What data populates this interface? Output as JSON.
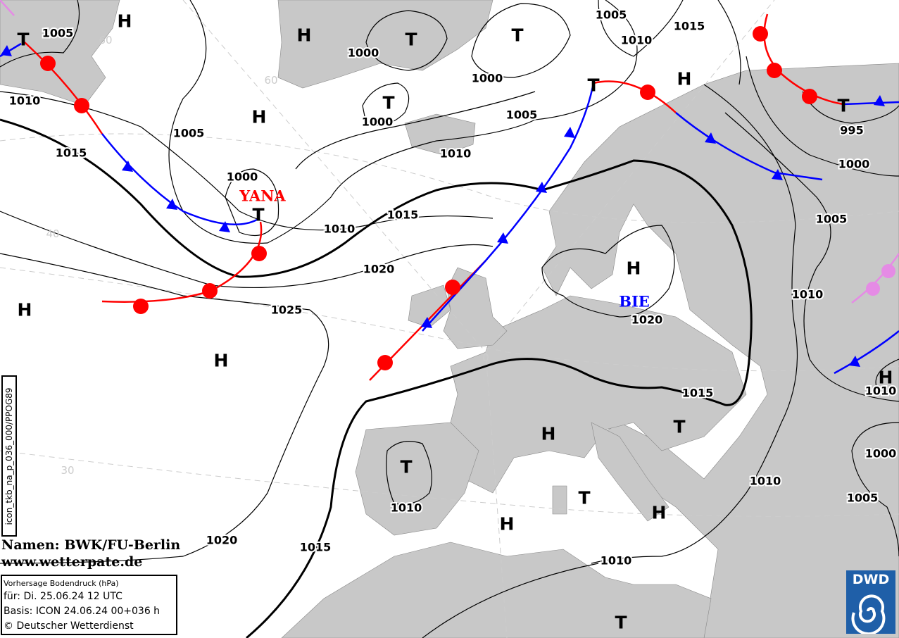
{
  "map": {
    "land_color": "#c8c8c8",
    "sea_color": "#ffffff",
    "isobar_color": "#000000",
    "cold_front_color": "#0000ff",
    "warm_front_color": "#ff0000",
    "occlusion_color": "#e58be5",
    "isobar_labels": [
      "1005",
      "1010",
      "1015",
      "1005",
      "1000",
      "1010",
      "1015",
      "1020",
      "1025",
      "1000",
      "1000",
      "1000",
      "1005",
      "1010",
      "1005",
      "1010",
      "1015",
      "995",
      "1000",
      "1005",
      "1010",
      "1020",
      "1015",
      "1010",
      "1020",
      "1015",
      "1010",
      "1010",
      "1005",
      "1000",
      "1010"
    ],
    "high_label": "H",
    "low_label": "T",
    "pressure_systems": [
      "H",
      "H",
      "H",
      "H",
      "H",
      "H",
      "H",
      "H",
      "H",
      "H",
      "H",
      "T",
      "T",
      "T",
      "T",
      "T",
      "T",
      "T",
      "T",
      "T",
      "T",
      "T"
    ],
    "system_names": [
      {
        "name": "YANA",
        "color": "#ff0000"
      },
      {
        "name": "BIE",
        "color": "#0000ff"
      }
    ],
    "grid_labels": [
      "60",
      "60",
      "40",
      "30",
      "0"
    ]
  },
  "credit": {
    "line1": "Namen: BWK/FU-Berlin",
    "line2": "www.wetterpate.de"
  },
  "infobox": {
    "title": "Vorhersage Bodendruck (hPa)",
    "valid": "für:  Di. 25.06.24  12 UTC",
    "basis": "Basis: ICON  24.06.24 00+036 h",
    "copyright": "© Deutscher Wetterdienst"
  },
  "product_id": "icon_tkb_na_p_036_000/PPOG89",
  "logo": {
    "text": "DWD",
    "icon": "dwd-swirl-icon"
  }
}
